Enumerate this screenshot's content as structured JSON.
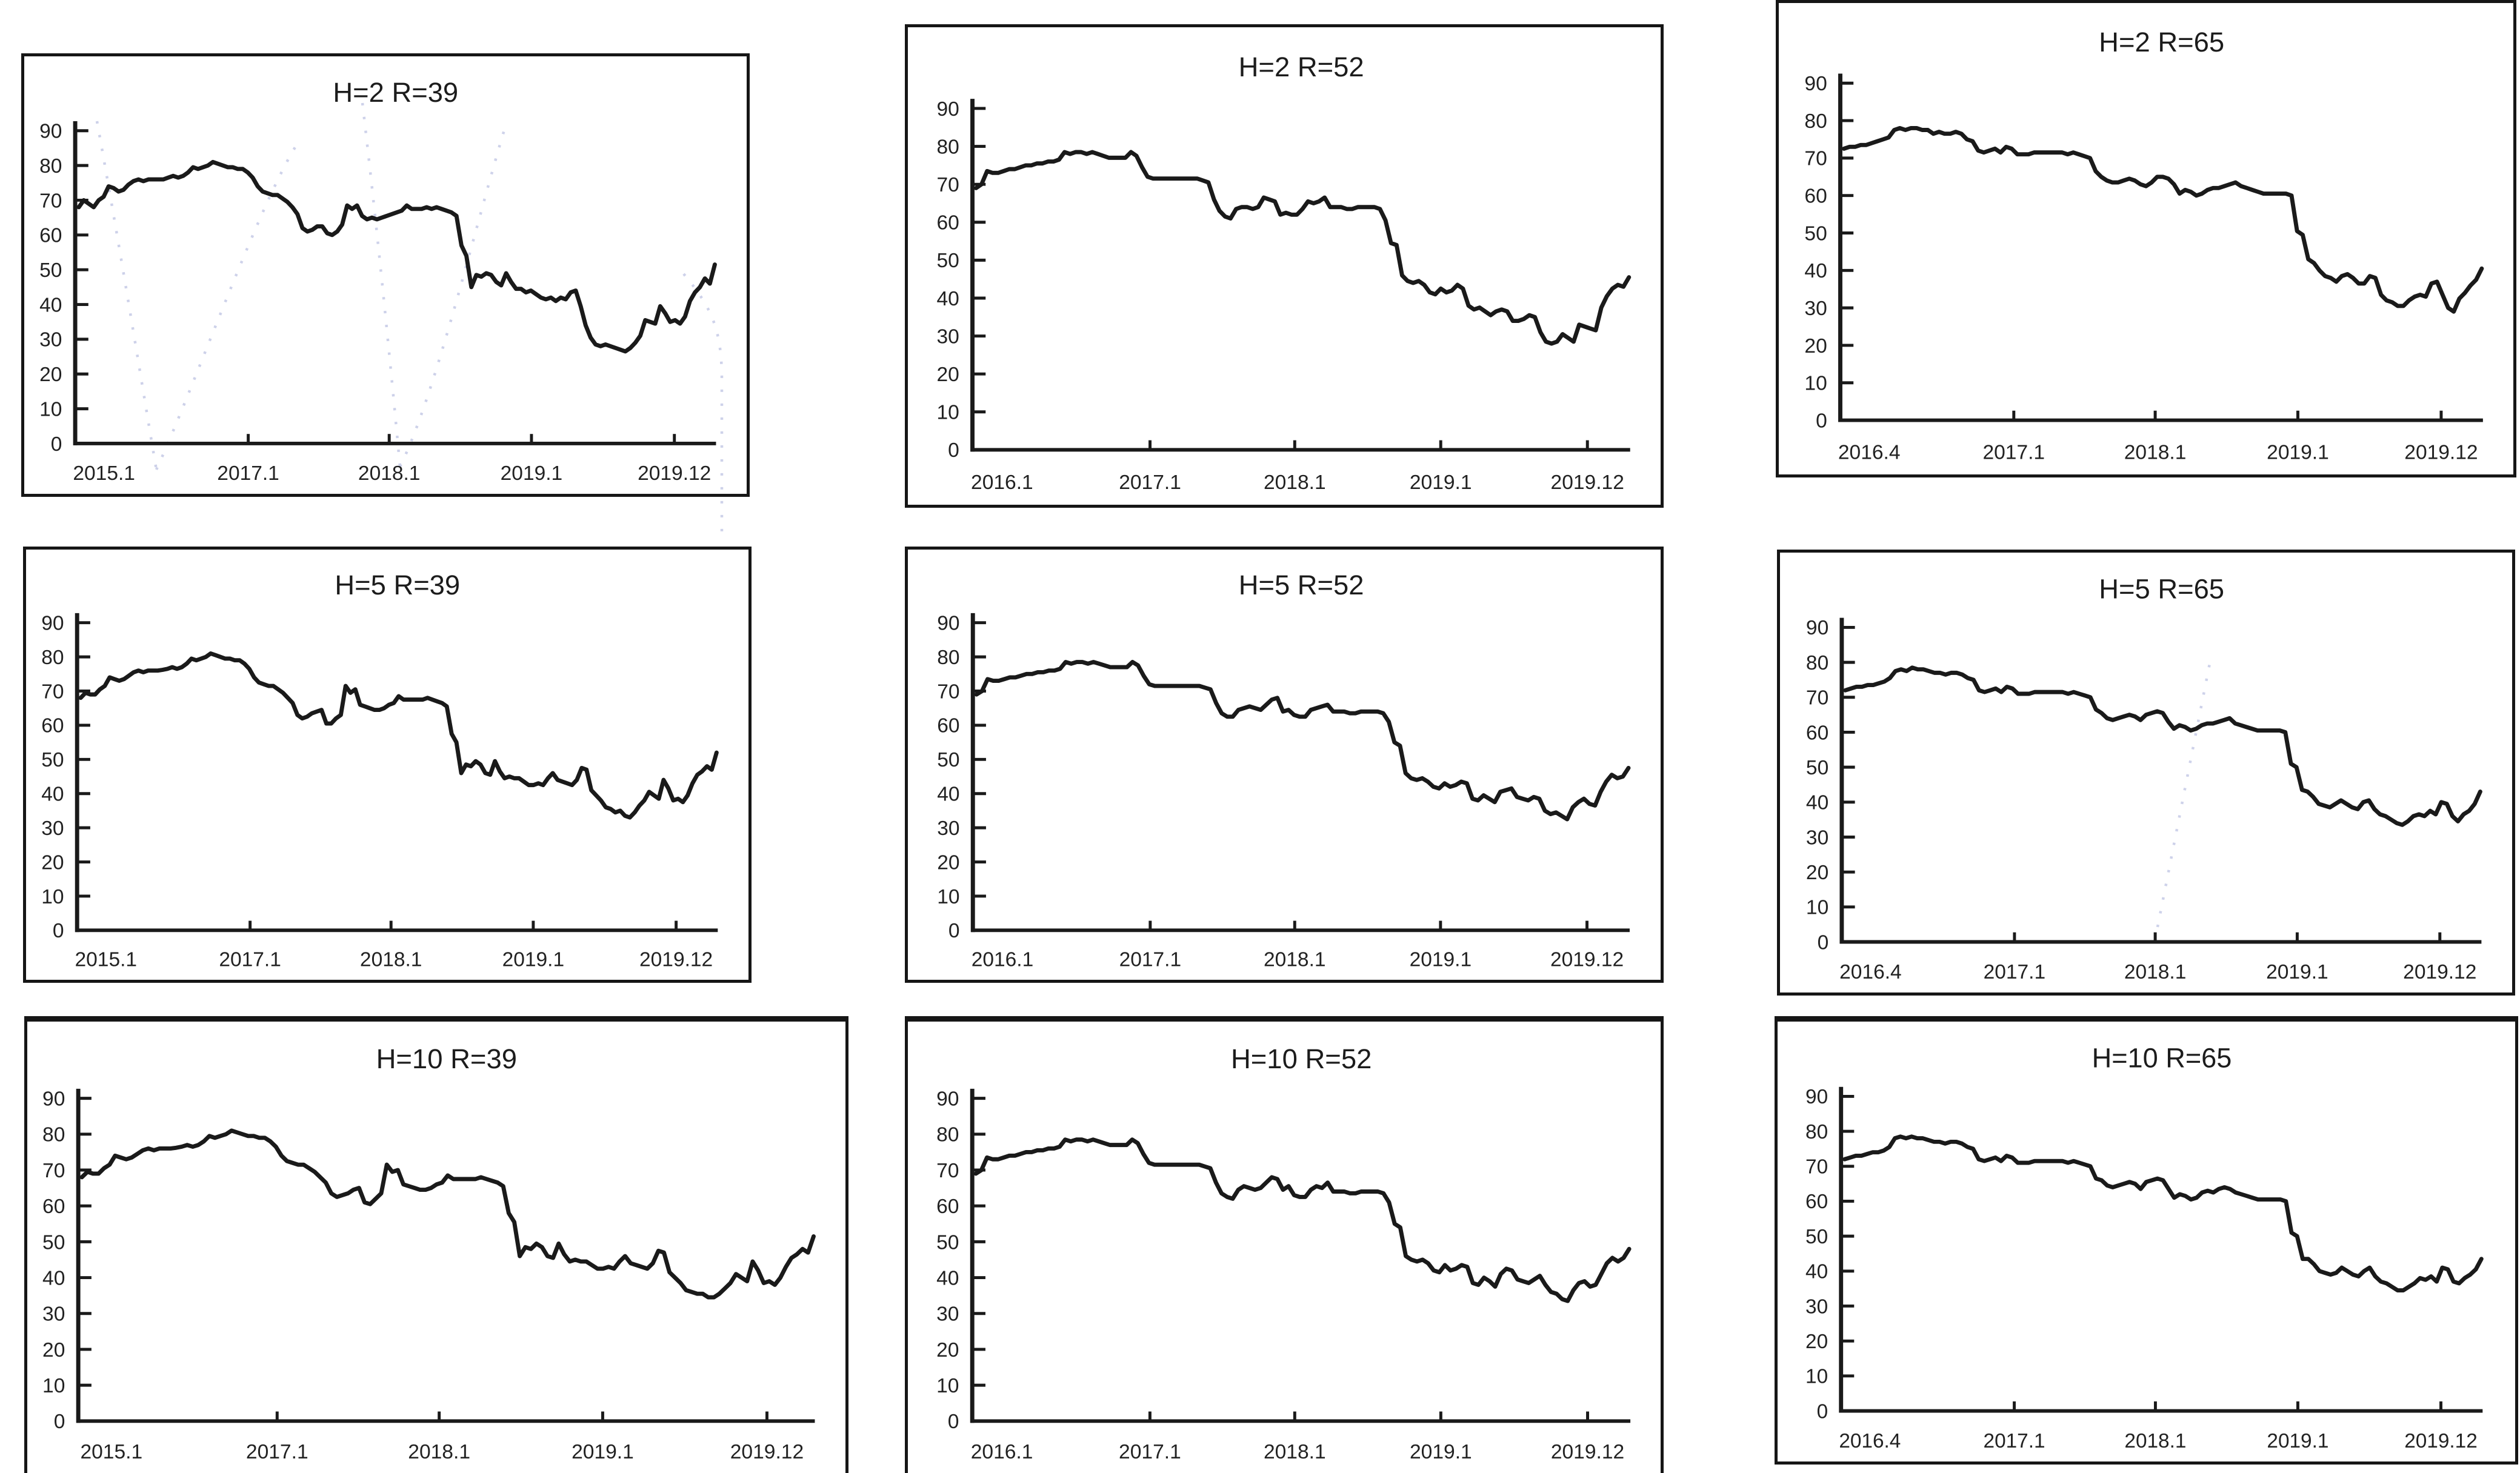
{
  "page": {
    "background": "#ffffff",
    "line_color": "#1a1a1a",
    "text_color": "#222222",
    "watermark_color": "#c5cae6"
  },
  "chart_data": [
    {
      "type": "line",
      "title": "H=2 R=39",
      "xlabel": "",
      "ylabel": "",
      "ylim": [
        0,
        90
      ],
      "grid": false,
      "legend": "none",
      "y_ticks": [
        0,
        10,
        20,
        30,
        40,
        50,
        60,
        70,
        80,
        90
      ],
      "x_labels": [
        "2015.1",
        "2017.1",
        "2018.1",
        "2019.1",
        "2019.12"
      ],
      "values": [
        68,
        70,
        69,
        68,
        70,
        71,
        74,
        73.5,
        72.5,
        73,
        74.5,
        75.5,
        76,
        75.5,
        76,
        76,
        76,
        76,
        76.5,
        77,
        76.5,
        77,
        78,
        79.5,
        79,
        79.5,
        80,
        81,
        80.5,
        80,
        79.5,
        79.5,
        79,
        79,
        78,
        76.5,
        74,
        72.5,
        72,
        71.5,
        71.5,
        70.5,
        69.5,
        68,
        66,
        62,
        61,
        61.5,
        62.5,
        62.5,
        60.5,
        60,
        61,
        63,
        68.5,
        67.5,
        68.5,
        65.5,
        64.5,
        65,
        64.5,
        65,
        65.5,
        66,
        66.5,
        67,
        68.5,
        67.5,
        67.5,
        67.5,
        68,
        67.5,
        68,
        67.5,
        67,
        66.5,
        65.5,
        57,
        54,
        45,
        48.5,
        48,
        49,
        48.5,
        46.5,
        45.5,
        49,
        46.5,
        44.5,
        44.5,
        43.5,
        44,
        43,
        42,
        41.5,
        42,
        41,
        42,
        41.5,
        43.5,
        44,
        39.5,
        34,
        30.5,
        28.5,
        28,
        28.5,
        28,
        27.5,
        27,
        26.5,
        27.5,
        29,
        31,
        35.5,
        35,
        34.5,
        39.5,
        37.5,
        35,
        35.5,
        34.5,
        36.5,
        41,
        43.5,
        45,
        47.5,
        46,
        51.5
      ]
    },
    {
      "type": "line",
      "title": "H=2 R=52",
      "xlabel": "",
      "ylabel": "",
      "ylim": [
        0,
        90
      ],
      "grid": false,
      "legend": "none",
      "y_ticks": [
        0,
        10,
        20,
        30,
        40,
        50,
        60,
        70,
        80,
        90
      ],
      "x_labels": [
        "2016.1",
        "2017.1",
        "2018.1",
        "2019.1",
        "2019.12"
      ],
      "values": [
        69,
        70,
        73.5,
        73,
        73,
        73.5,
        74,
        74,
        74.5,
        75,
        75,
        75.5,
        75.5,
        76,
        76,
        76.5,
        78.5,
        78,
        78.5,
        78.5,
        78,
        78.5,
        78,
        77.5,
        77,
        77,
        77,
        77,
        78.5,
        77.5,
        74.5,
        72,
        71.5,
        71.5,
        71.5,
        71.5,
        71.5,
        71.5,
        71.5,
        71.5,
        71.5,
        71,
        70.5,
        66,
        63,
        61.5,
        61,
        63.5,
        64,
        64,
        63.5,
        64,
        66.5,
        66,
        65.5,
        62,
        62.5,
        62,
        62,
        63.5,
        65.5,
        65,
        65.5,
        66.5,
        64,
        64,
        64,
        63.5,
        63.5,
        64,
        64,
        64,
        64,
        63.5,
        60.5,
        54.5,
        54,
        46,
        44.5,
        44,
        44.5,
        43.5,
        41.5,
        41,
        42.5,
        41.5,
        42,
        43.5,
        42.5,
        38,
        37,
        37.5,
        36.5,
        35.5,
        36.5,
        37,
        36.5,
        34,
        34,
        34.5,
        35.5,
        35,
        31,
        28.5,
        28,
        28.5,
        30.5,
        29.5,
        28.5,
        33,
        32.5,
        32,
        31.5,
        37.5,
        40.5,
        42.5,
        43.5,
        43,
        45.5
      ]
    },
    {
      "type": "line",
      "title": "H=2 R=65",
      "xlabel": "",
      "ylabel": "",
      "ylim": [
        0,
        90
      ],
      "grid": false,
      "legend": "none",
      "y_ticks": [
        0,
        10,
        20,
        30,
        40,
        50,
        60,
        70,
        80,
        90
      ],
      "x_labels": [
        "2016.4",
        "2017.1",
        "2018.1",
        "2019.1",
        "2019.12"
      ],
      "values": [
        72.5,
        73,
        73,
        73.5,
        73.5,
        74,
        74.5,
        75,
        75.5,
        77.5,
        78,
        77.5,
        78,
        78,
        77.5,
        77.5,
        76.5,
        77,
        76.5,
        76.5,
        77,
        76.5,
        75,
        74.5,
        72,
        71.5,
        72,
        72.5,
        71.5,
        73,
        72.5,
        71,
        71,
        71,
        71.5,
        71.5,
        71.5,
        71.5,
        71.5,
        71.5,
        71,
        71.5,
        71,
        70.5,
        70,
        66.5,
        65,
        64,
        63.5,
        63.5,
        64,
        64.5,
        64,
        63,
        62.5,
        63.5,
        65,
        65,
        64.5,
        63,
        60.5,
        61.5,
        61,
        60,
        60.5,
        61.5,
        62,
        62,
        62.5,
        63,
        63.5,
        62.5,
        62,
        61.5,
        61,
        60.5,
        60.5,
        60.5,
        60.5,
        60.5,
        60,
        50.5,
        49.5,
        43,
        42,
        40,
        38.5,
        38,
        37,
        38.5,
        39,
        38,
        36.5,
        36.5,
        38.5,
        38,
        33.5,
        32,
        31.5,
        30.5,
        30.5,
        32,
        33,
        33.5,
        33,
        36.5,
        37,
        33.5,
        30,
        29,
        32.5,
        34,
        36,
        37.5,
        40.5
      ]
    },
    {
      "type": "line",
      "title": "H=5 R=39",
      "xlabel": "",
      "ylabel": "",
      "ylim": [
        0,
        90
      ],
      "grid": false,
      "legend": "none",
      "y_ticks": [
        0,
        10,
        20,
        30,
        40,
        50,
        60,
        70,
        80,
        90
      ],
      "x_labels": [
        "2015.1",
        "2017.1",
        "2018.1",
        "2019.1",
        "2019.12"
      ],
      "values": [
        68,
        69.5,
        69,
        69,
        70.5,
        71.5,
        74,
        73.5,
        73,
        73.5,
        74.5,
        75.5,
        76,
        75.5,
        76,
        76,
        76,
        76.2,
        76.5,
        77,
        76.5,
        77,
        78,
        79.5,
        79,
        79.5,
        80,
        81,
        80.5,
        80,
        79.5,
        79.5,
        79,
        79,
        78,
        76.5,
        74,
        72.5,
        72,
        71.5,
        71.5,
        70.5,
        69.5,
        68,
        66.5,
        63,
        62,
        62.5,
        63.5,
        64,
        64.5,
        60.5,
        60.5,
        62,
        63,
        71.5,
        69.5,
        70.5,
        66,
        65.5,
        65,
        64.5,
        64.5,
        65,
        66,
        66.5,
        68.5,
        67.5,
        67.5,
        67.5,
        67.5,
        67.5,
        68,
        67.5,
        67,
        66.5,
        65.5,
        57.5,
        55,
        46,
        48.5,
        48,
        49.5,
        48.5,
        46,
        45.5,
        49.5,
        46.5,
        44.5,
        45,
        44.5,
        44.5,
        43.5,
        42.5,
        42.5,
        43,
        42.5,
        44.5,
        46,
        44,
        43.5,
        43,
        42.5,
        44,
        47.5,
        47,
        41,
        39.5,
        38,
        36,
        35.5,
        34.5,
        35,
        33.5,
        33,
        34.5,
        36.5,
        38,
        40.5,
        39.5,
        38.5,
        44,
        41.5,
        38,
        38.5,
        37.5,
        39.5,
        43,
        45.5,
        46.5,
        48,
        47,
        52
      ]
    },
    {
      "type": "line",
      "title": "H=5 R=52",
      "xlabel": "",
      "ylabel": "",
      "ylim": [
        0,
        90
      ],
      "grid": false,
      "legend": "none",
      "y_ticks": [
        0,
        10,
        20,
        30,
        40,
        50,
        60,
        70,
        80,
        90
      ],
      "x_labels": [
        "2016.1",
        "2017.1",
        "2018.1",
        "2019.1",
        "2019.12"
      ],
      "values": [
        69,
        70,
        73.5,
        73,
        73,
        73.5,
        74,
        74,
        74.5,
        75,
        75,
        75.5,
        75.5,
        76,
        76,
        76.5,
        78.5,
        78,
        78.5,
        78.5,
        78,
        78.5,
        78,
        77.5,
        77,
        77,
        77,
        77,
        78.5,
        77.5,
        74.5,
        72,
        71.5,
        71.5,
        71.5,
        71.5,
        71.5,
        71.5,
        71.5,
        71.5,
        71.5,
        71,
        70.5,
        66.5,
        63.5,
        62.5,
        62.5,
        64.5,
        65,
        65.5,
        65,
        64.5,
        66,
        67.5,
        68,
        64,
        64.5,
        63,
        62.5,
        62.5,
        64.5,
        65,
        65.5,
        66,
        64,
        64,
        64,
        63.5,
        63.5,
        64,
        64,
        64,
        64,
        63.5,
        61,
        55,
        54,
        46,
        44.5,
        44,
        44.5,
        43.5,
        42,
        41.5,
        43,
        42,
        42.5,
        43.5,
        43,
        38.5,
        38,
        39.5,
        38.5,
        37.5,
        40.5,
        41,
        41.5,
        39,
        38.5,
        38,
        39,
        38.5,
        35,
        34,
        34.5,
        33.5,
        32.5,
        36,
        37.5,
        38.5,
        37,
        36.5,
        40.5,
        43.5,
        45.5,
        44.5,
        45,
        47.5
      ]
    },
    {
      "type": "line",
      "title": "H=5 R=65",
      "xlabel": "",
      "ylabel": "",
      "ylim": [
        0,
        90
      ],
      "grid": false,
      "legend": "none",
      "y_ticks": [
        0,
        10,
        20,
        30,
        40,
        50,
        60,
        70,
        80,
        90
      ],
      "x_labels": [
        "2016.4",
        "2017.1",
        "2018.1",
        "2019.1",
        "2019.12"
      ],
      "values": [
        72,
        72.5,
        73,
        73,
        73.5,
        73.5,
        74,
        74.5,
        75.5,
        77.5,
        78,
        77.5,
        78.5,
        78,
        78,
        77.5,
        77,
        77,
        76.5,
        77,
        77,
        76.5,
        75.5,
        75,
        72,
        71.5,
        72,
        72.5,
        71.5,
        73,
        72.5,
        71,
        71,
        71,
        71.5,
        71.5,
        71.5,
        71.5,
        71.5,
        71.5,
        71,
        71.5,
        71,
        70.5,
        70,
        66.5,
        65.5,
        64,
        63.5,
        64,
        64.5,
        65,
        64.5,
        63.5,
        65,
        65.5,
        66,
        65.5,
        63,
        61,
        62,
        61.5,
        60.5,
        61,
        62,
        62.5,
        62.5,
        63,
        63.5,
        64,
        62.5,
        62,
        61.5,
        61,
        60.5,
        60.5,
        60.5,
        60.5,
        60.5,
        60,
        51,
        50,
        43.5,
        43,
        41.5,
        39.5,
        39,
        38.5,
        39.5,
        40.5,
        39.5,
        38.5,
        38,
        40,
        40.5,
        38,
        36.5,
        36,
        35,
        34,
        33.5,
        34.5,
        36,
        36.5,
        36,
        37.5,
        36.5,
        40,
        39.5,
        36,
        34.5,
        36.5,
        37.5,
        39.5,
        43
      ]
    },
    {
      "type": "line",
      "title": "H=10 R=39",
      "xlabel": "",
      "ylabel": "",
      "ylim": [
        0,
        90
      ],
      "grid": false,
      "legend": "none",
      "y_ticks": [
        0,
        10,
        20,
        30,
        40,
        50,
        60,
        70,
        80,
        90
      ],
      "x_labels": [
        "2015.1",
        "2017.1",
        "2018.1",
        "2019.1",
        "2019.12"
      ],
      "values": [
        68,
        69.5,
        69,
        69,
        70.5,
        71.5,
        74,
        73.5,
        73,
        73.5,
        74.5,
        75.5,
        76,
        75.5,
        76,
        76,
        76,
        76.2,
        76.5,
        77,
        76.5,
        77,
        78,
        79.5,
        79,
        79.5,
        80,
        81,
        80.5,
        80,
        79.5,
        79.5,
        79,
        79,
        78,
        76.5,
        74,
        72.5,
        72,
        71.5,
        71.5,
        70.5,
        69.5,
        68,
        66.5,
        63.5,
        62.5,
        63,
        63.5,
        64.5,
        65,
        61,
        60.5,
        62,
        63.5,
        71.5,
        69.5,
        70,
        66,
        65.5,
        65,
        64.5,
        64.5,
        65,
        66,
        66.5,
        68.5,
        67.5,
        67.5,
        67.5,
        67.5,
        67.5,
        68,
        67.5,
        67,
        66.5,
        65.5,
        58,
        55.5,
        46,
        48.5,
        48,
        49.5,
        48.5,
        46,
        45.5,
        49.5,
        46.5,
        44.5,
        45,
        44.5,
        44.5,
        43.5,
        42.5,
        42.5,
        43,
        42.5,
        44.5,
        46,
        44,
        43.5,
        43,
        42.5,
        44,
        47.5,
        47,
        41.5,
        40,
        38.5,
        36.5,
        36,
        35.5,
        35.5,
        34.5,
        34.5,
        35.5,
        37,
        38.5,
        41,
        40,
        39,
        44.5,
        42,
        38.5,
        39,
        38,
        40,
        43,
        45.5,
        46.5,
        48,
        47,
        51.5
      ]
    },
    {
      "type": "line",
      "title": "H=10 R=52",
      "xlabel": "",
      "ylabel": "",
      "ylim": [
        0,
        90
      ],
      "grid": false,
      "legend": "none",
      "y_ticks": [
        0,
        10,
        20,
        30,
        40,
        50,
        60,
        70,
        80,
        90
      ],
      "x_labels": [
        "2016.1",
        "2017.1",
        "2018.1",
        "2019.1",
        "2019.12"
      ],
      "values": [
        69,
        70,
        73.5,
        73,
        73,
        73.5,
        74,
        74,
        74.5,
        75,
        75,
        75.5,
        75.5,
        76,
        76,
        76.5,
        78.5,
        78,
        78.5,
        78.5,
        78,
        78.5,
        78,
        77.5,
        77,
        77,
        77,
        77,
        78.5,
        77.5,
        74.5,
        72,
        71.5,
        71.5,
        71.5,
        71.5,
        71.5,
        71.5,
        71.5,
        71.5,
        71.5,
        71,
        70.5,
        66.5,
        63.5,
        62.5,
        62,
        64.5,
        65.5,
        65,
        64.5,
        65,
        66.5,
        68,
        67.5,
        64.5,
        65.5,
        63,
        62.5,
        62.5,
        64.5,
        65.5,
        65,
        66.5,
        64,
        64,
        64,
        63.5,
        63.5,
        64,
        64,
        64,
        64,
        63.5,
        61,
        55,
        54,
        46,
        45,
        44.5,
        45,
        44,
        42,
        41.5,
        43.5,
        42,
        42.5,
        43.5,
        43,
        38.5,
        38,
        40,
        39,
        37.5,
        41,
        42.5,
        42,
        39.5,
        39,
        38.5,
        39.5,
        40.5,
        38,
        36,
        35.5,
        34,
        33.5,
        36.5,
        38.5,
        39,
        37.5,
        38,
        41,
        44,
        45.5,
        44.5,
        45.5,
        48
      ]
    },
    {
      "type": "line",
      "title": "H=10 R=65",
      "xlabel": "",
      "ylabel": "",
      "ylim": [
        0,
        90
      ],
      "grid": false,
      "legend": "none",
      "y_ticks": [
        0,
        10,
        20,
        30,
        40,
        50,
        60,
        70,
        80,
        90
      ],
      "x_labels": [
        "2016.4",
        "2017.1",
        "2018.1",
        "2019.1",
        "2019.12"
      ],
      "values": [
        72,
        72.5,
        73,
        73,
        73.5,
        74,
        74,
        74.5,
        75.5,
        78,
        78.5,
        78,
        78.5,
        78,
        78,
        77.5,
        77,
        77,
        76.5,
        77,
        77,
        76.5,
        75.5,
        75,
        72,
        71.5,
        72,
        72.5,
        71.5,
        73,
        72.5,
        71,
        71,
        71,
        71.5,
        71.5,
        71.5,
        71.5,
        71.5,
        71.5,
        71,
        71.5,
        71,
        70.5,
        70,
        66.5,
        66,
        64.5,
        64,
        64.5,
        65,
        65.5,
        65,
        63.5,
        65.5,
        66,
        66.5,
        66,
        63.5,
        61,
        62,
        61.5,
        60.5,
        61,
        62.5,
        63,
        62.5,
        63.5,
        64,
        63.5,
        62.5,
        62,
        61.5,
        61,
        60.5,
        60.5,
        60.5,
        60.5,
        60.5,
        60,
        51,
        50,
        43.5,
        43.5,
        42,
        40,
        39.5,
        39,
        39.5,
        41,
        40,
        39,
        38.5,
        40,
        41,
        38.5,
        37,
        36.5,
        35.5,
        34.5,
        34.5,
        35.5,
        36.5,
        38,
        37.5,
        38.5,
        37,
        41,
        40.5,
        37,
        36.5,
        38,
        39,
        40.5,
        43.5
      ]
    }
  ]
}
